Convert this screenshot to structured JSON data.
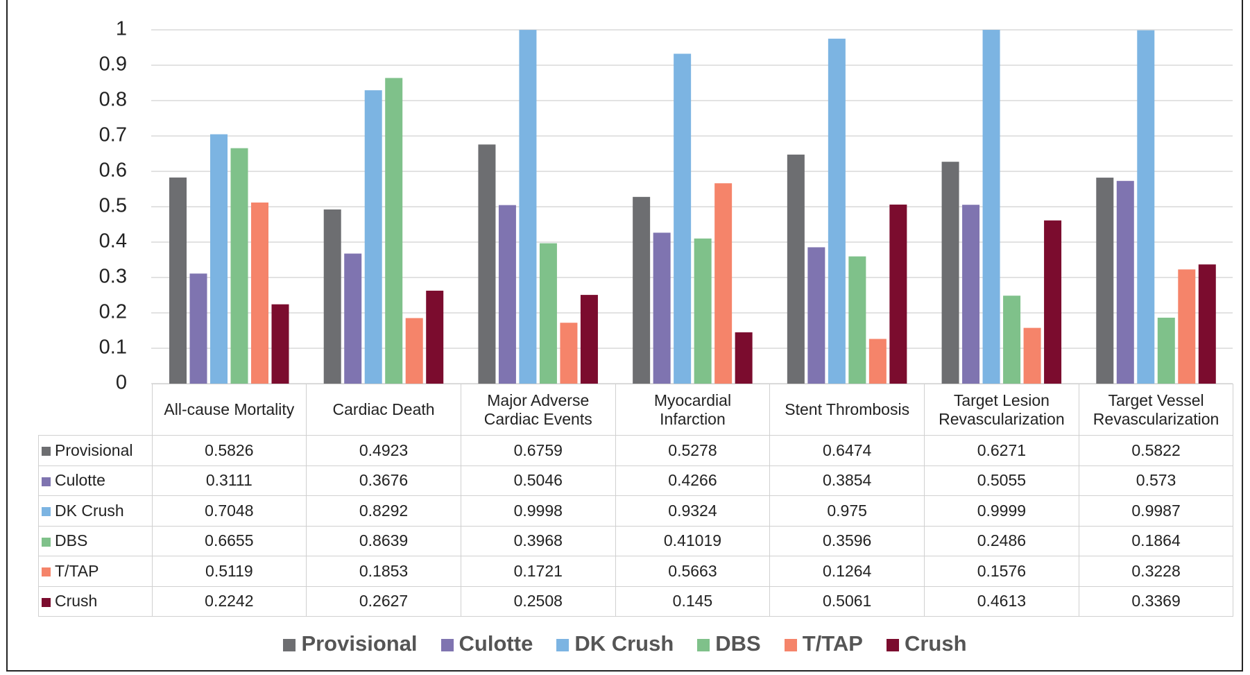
{
  "chart_data": {
    "type": "bar",
    "categories": [
      "All-cause Mortality",
      "Cardiac Death",
      "Major Adverse Cardiac Events",
      "Myocardial Infarction",
      "Stent Thrombosis",
      "Target Lesion Revascularization",
      "Target Vessel Revascularization"
    ],
    "series": [
      {
        "name": "Provisional",
        "color": "#6d6e71",
        "values": [
          0.5826,
          0.4923,
          0.6759,
          0.5278,
          0.6474,
          0.6271,
          0.5822
        ]
      },
      {
        "name": "Culotte",
        "color": "#7f74b0",
        "values": [
          0.3111,
          0.3676,
          0.5046,
          0.4266,
          0.3854,
          0.5055,
          0.573
        ]
      },
      {
        "name": "DK Crush",
        "color": "#7cb4e2",
        "values": [
          0.7048,
          0.8292,
          0.9998,
          0.9324,
          0.975,
          0.9999,
          0.9987
        ]
      },
      {
        "name": "DBS",
        "color": "#7fc18a",
        "values": [
          0.6655,
          0.8639,
          0.3968,
          0.41019,
          0.3596,
          0.2486,
          0.1864
        ]
      },
      {
        "name": "T/TAP",
        "color": "#f5846a",
        "values": [
          0.5119,
          0.1853,
          0.1721,
          0.5663,
          0.1264,
          0.1576,
          0.3228
        ]
      },
      {
        "name": "Crush",
        "color": "#7b0c2e",
        "values": [
          0.2242,
          0.2627,
          0.2508,
          0.145,
          0.5061,
          0.4613,
          0.3369
        ]
      }
    ],
    "ylim": [
      0,
      1
    ],
    "yticks": [
      0,
      0.1,
      0.2,
      0.3,
      0.4,
      0.5,
      0.6,
      0.7,
      0.8,
      0.9,
      1
    ],
    "grid": true,
    "data_table": true,
    "legend": "bottom"
  }
}
